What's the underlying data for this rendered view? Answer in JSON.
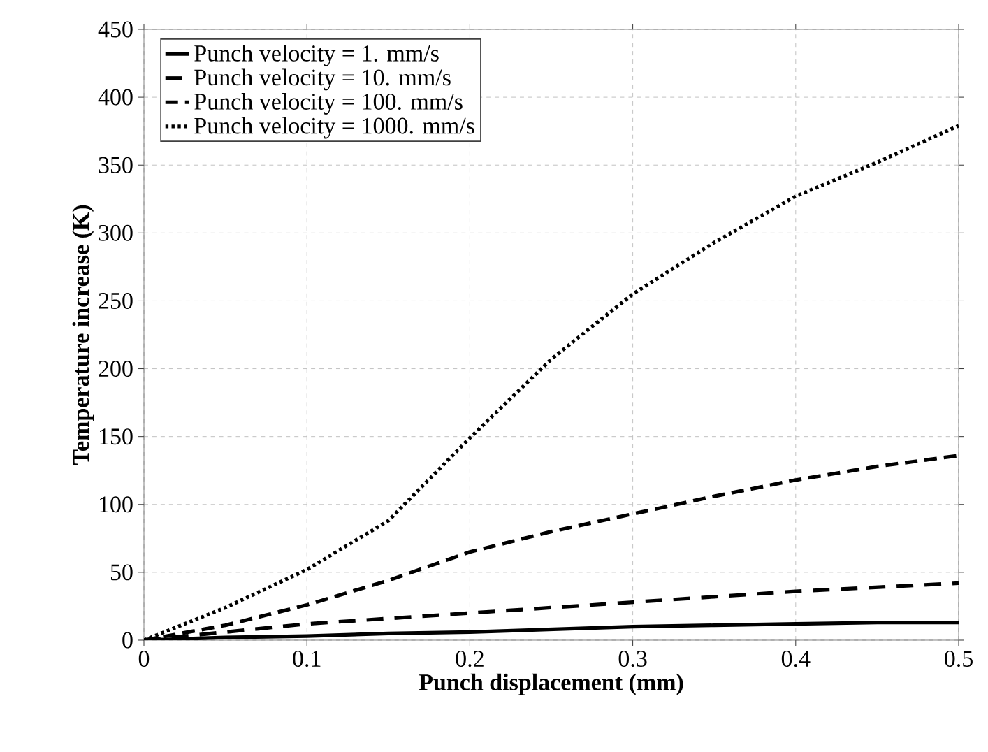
{
  "chart_data": {
    "type": "line",
    "xlabel": "Punch displacement (mm)",
    "ylabel": "Temperature increase (K)",
    "x": [
      0,
      0.05,
      0.1,
      0.15,
      0.2,
      0.25,
      0.3,
      0.35,
      0.4,
      0.45,
      0.5
    ],
    "series": [
      {
        "name": "Punch velocity = 1. mm/s",
        "color": "#000000",
        "line_style": "solid",
        "values": [
          0,
          2,
          3,
          5,
          6,
          8,
          10,
          11,
          12,
          13,
          13
        ]
      },
      {
        "name": "Punch velocity = 10. mm/s",
        "color": "#000000",
        "line_style": "dashed",
        "values": [
          0,
          6,
          12,
          16,
          20,
          24,
          28,
          32,
          36,
          39,
          42
        ]
      },
      {
        "name": "Punch velocity = 100. mm/s",
        "color": "#000000",
        "line_style": "dashed",
        "values": [
          0,
          11,
          26,
          44,
          65,
          80,
          93,
          106,
          118,
          128,
          136
        ]
      },
      {
        "name": "Punch velocity = 1000. mm/s",
        "color": "#000000",
        "line_style": "dotted",
        "values": [
          0,
          24,
          52,
          88,
          149,
          207,
          255,
          293,
          327,
          352,
          379
        ]
      }
    ],
    "xlim": [
      0,
      0.5
    ],
    "xticks": [
      0,
      0.1,
      0.2,
      0.3,
      0.4,
      0.5
    ],
    "ylim": [
      0,
      450
    ],
    "yticks": [
      0,
      50,
      100,
      150,
      200,
      250,
      300,
      350,
      400,
      450
    ],
    "grid": true,
    "legend": "top left"
  }
}
